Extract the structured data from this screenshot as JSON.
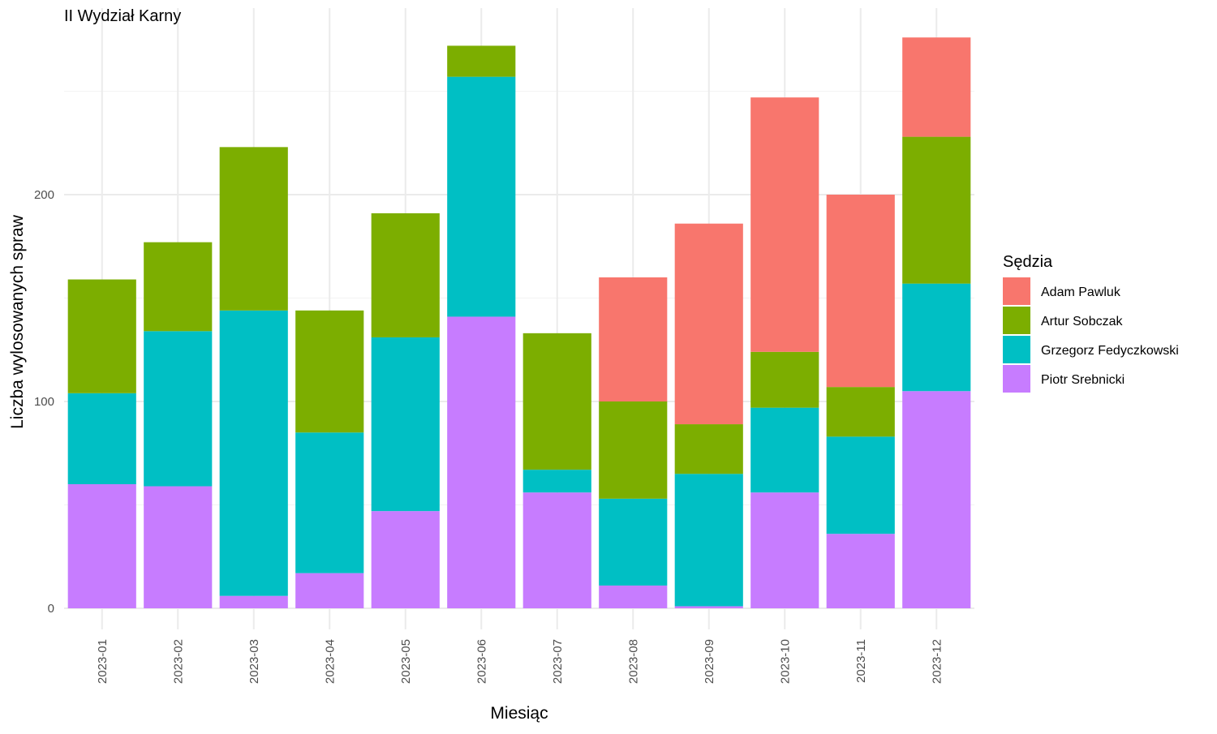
{
  "chart_data": {
    "type": "bar",
    "stacked": true,
    "title": "II Wydział Karny",
    "xlabel": "Miesiąc",
    "ylabel": "Liczba wylosowanych spraw",
    "ylim": [
      -10,
      285
    ],
    "yticks": [
      0,
      100,
      200
    ],
    "grid": true,
    "legend_position": "right",
    "legend_title": "Sędzia",
    "categories": [
      "2023-01",
      "2023-02",
      "2023-03",
      "2023-04",
      "2023-05",
      "2023-06",
      "2023-07",
      "2023-08",
      "2023-09",
      "2023-10",
      "2023-11",
      "2023-12"
    ],
    "series": [
      {
        "name": "Piotr Srebnicki",
        "color": "#C77CFF",
        "values": [
          60,
          59,
          6,
          17,
          47,
          141,
          56,
          11,
          1,
          56,
          36,
          105
        ]
      },
      {
        "name": "Grzegorz Fedyczkowski",
        "color": "#00BFC4",
        "values": [
          44,
          75,
          138,
          68,
          84,
          116,
          11,
          42,
          64,
          41,
          47,
          52
        ]
      },
      {
        "name": "Artur Sobczak",
        "color": "#7CAE00",
        "values": [
          55,
          43,
          79,
          59,
          60,
          15,
          66,
          47,
          24,
          27,
          24,
          71
        ]
      },
      {
        "name": "Adam Pawluk",
        "color": "#F8766D",
        "values": [
          0,
          0,
          0,
          0,
          0,
          0,
          0,
          60,
          97,
          123,
          93,
          48
        ]
      }
    ],
    "legend_order": [
      "Adam Pawluk",
      "Artur Sobczak",
      "Grzegorz Fedyczkowski",
      "Piotr Srebnicki"
    ]
  }
}
